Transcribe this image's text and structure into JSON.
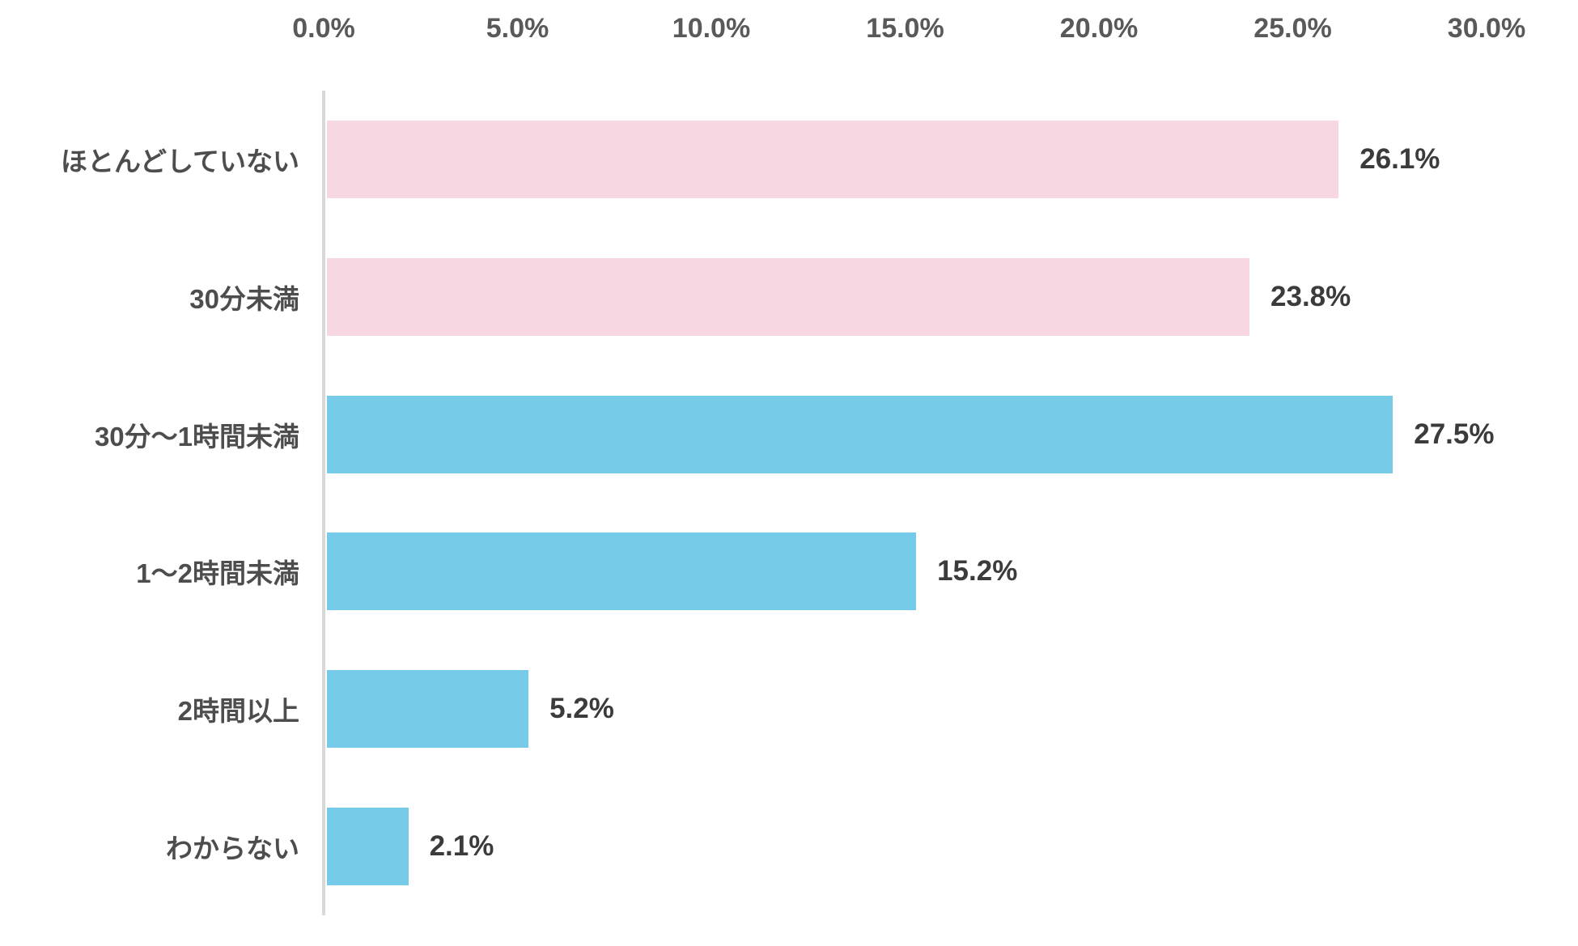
{
  "chart_data": {
    "type": "bar",
    "orientation": "horizontal",
    "title": "",
    "xlabel": "",
    "ylabel": "",
    "categories": [
      "ほとんどしていない",
      "30分未満",
      "30分〜1時間未満",
      "1〜2時間未満",
      "2時間以上",
      "わからない"
    ],
    "values": [
      26.1,
      23.8,
      27.5,
      15.2,
      5.2,
      2.1
    ],
    "value_labels": [
      "26.1%",
      "23.8%",
      "27.5%",
      "15.2%",
      "5.2%",
      "2.1%"
    ],
    "bar_colors": [
      "#f7d8e2",
      "#f7d8e2",
      "#76cbe8",
      "#76cbe8",
      "#76cbe8",
      "#76cbe8"
    ],
    "x_ticks": [
      "0.0%",
      "5.0%",
      "10.0%",
      "15.0%",
      "20.0%",
      "25.0%",
      "30.0%"
    ],
    "x_tick_values": [
      0,
      5,
      10,
      15,
      20,
      25,
      30
    ],
    "xlim": [
      0,
      30
    ],
    "grid": false,
    "legend": false,
    "value_labels_position": "outside-end",
    "tick_position": "top"
  },
  "colors": {
    "pink_bar": "#f7d8e2",
    "blue_bar": "#76cbe8",
    "axis_line": "#d8d8d8",
    "tick_text": "#595959",
    "category_text": "#4d4d4d",
    "value_text": "#3b3b3b",
    "background": "#ffffff"
  }
}
